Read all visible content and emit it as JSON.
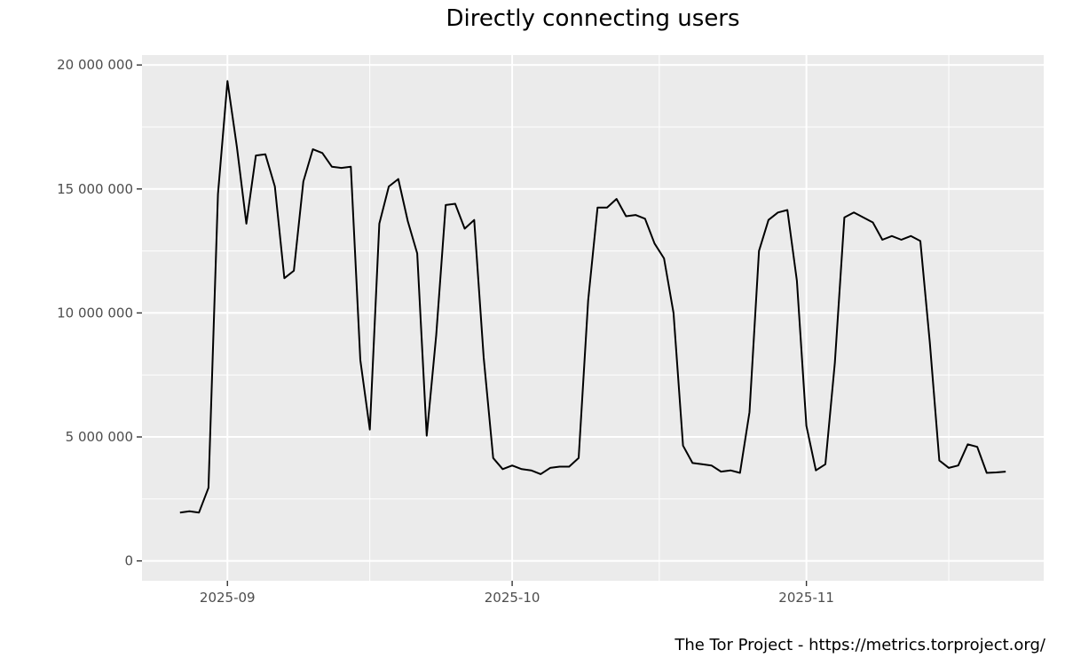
{
  "chart_data": {
    "type": "line",
    "title": "Directly connecting users",
    "xlabel": "",
    "ylabel": "",
    "caption": "The Tor Project - https://metrics.torproject.org/",
    "ylim": [
      -800000,
      20400000
    ],
    "xlim": [
      "2025-08-23",
      "2025-11-26"
    ],
    "grid": true,
    "y_ticks": [
      0,
      5000000,
      10000000,
      15000000,
      20000000
    ],
    "y_tick_labels": [
      "0",
      "5 000 000",
      "10 000 000",
      "15 000 000",
      "20 000 000"
    ],
    "x_ticks": [
      "2025-09-01",
      "2025-10-01",
      "2025-11-01"
    ],
    "x_tick_labels": [
      "2025-09",
      "2025-10",
      "2025-11"
    ],
    "colors": {
      "line": "#000000",
      "panel": "#ebebeb",
      "grid": "#ffffff"
    },
    "series": [
      {
        "x": [
          "2025-08-27",
          "2025-08-28",
          "2025-08-29",
          "2025-08-30",
          "2025-08-31",
          "2025-09-01",
          "2025-09-02",
          "2025-09-03",
          "2025-09-04",
          "2025-09-05",
          "2025-09-06",
          "2025-09-07",
          "2025-09-08",
          "2025-09-09",
          "2025-09-10",
          "2025-09-11",
          "2025-09-12",
          "2025-09-13",
          "2025-09-14",
          "2025-09-15",
          "2025-09-16",
          "2025-09-17",
          "2025-09-18",
          "2025-09-19",
          "2025-09-20",
          "2025-09-21",
          "2025-09-22",
          "2025-09-23",
          "2025-09-24",
          "2025-09-25",
          "2025-09-26",
          "2025-09-27",
          "2025-09-28",
          "2025-09-29",
          "2025-09-30",
          "2025-10-01",
          "2025-10-02",
          "2025-10-03",
          "2025-10-04",
          "2025-10-05",
          "2025-10-06",
          "2025-10-07",
          "2025-10-08",
          "2025-10-09",
          "2025-10-10",
          "2025-10-11",
          "2025-10-12",
          "2025-10-13",
          "2025-10-14",
          "2025-10-15",
          "2025-10-16",
          "2025-10-17",
          "2025-10-18",
          "2025-10-19",
          "2025-10-20",
          "2025-10-21",
          "2025-10-22",
          "2025-10-23",
          "2025-10-24",
          "2025-10-25",
          "2025-10-26",
          "2025-10-27",
          "2025-10-28",
          "2025-10-29",
          "2025-10-30",
          "2025-10-31",
          "2025-11-01",
          "2025-11-02",
          "2025-11-03",
          "2025-11-04",
          "2025-11-05",
          "2025-11-06",
          "2025-11-07",
          "2025-11-08",
          "2025-11-09",
          "2025-11-10",
          "2025-11-11",
          "2025-11-12",
          "2025-11-13",
          "2025-11-14",
          "2025-11-15",
          "2025-11-16",
          "2025-11-17",
          "2025-11-18",
          "2025-11-19",
          "2025-11-20",
          "2025-11-21",
          "2025-11-22"
        ],
        "values": [
          1950000,
          2000000,
          1950000,
          2950000,
          14800000,
          19350000,
          16700000,
          13600000,
          16350000,
          16400000,
          15100000,
          11400000,
          11700000,
          15300000,
          16600000,
          16450000,
          15900000,
          15850000,
          15900000,
          8100000,
          5300000,
          13600000,
          15100000,
          15400000,
          13700000,
          12400000,
          5050000,
          9100000,
          14350000,
          14400000,
          13400000,
          13750000,
          8200000,
          4150000,
          3700000,
          3850000,
          3700000,
          3650000,
          3500000,
          3750000,
          3800000,
          3800000,
          4150000,
          10500000,
          14250000,
          14250000,
          14600000,
          13900000,
          13950000,
          13800000,
          12800000,
          12200000,
          10000000,
          4650000,
          3950000,
          3900000,
          3850000,
          3600000,
          3650000,
          3550000,
          6000000,
          12500000,
          13750000,
          14050000,
          14150000,
          11300000,
          5450000,
          3650000,
          3900000,
          8000000,
          13850000,
          14050000,
          13850000,
          13650000,
          12950000,
          13100000,
          12950000,
          13100000,
          12900000,
          8800000,
          4050000,
          3750000,
          3850000,
          4700000,
          4600000,
          3550000,
          3570000,
          3600000
        ]
      }
    ]
  }
}
